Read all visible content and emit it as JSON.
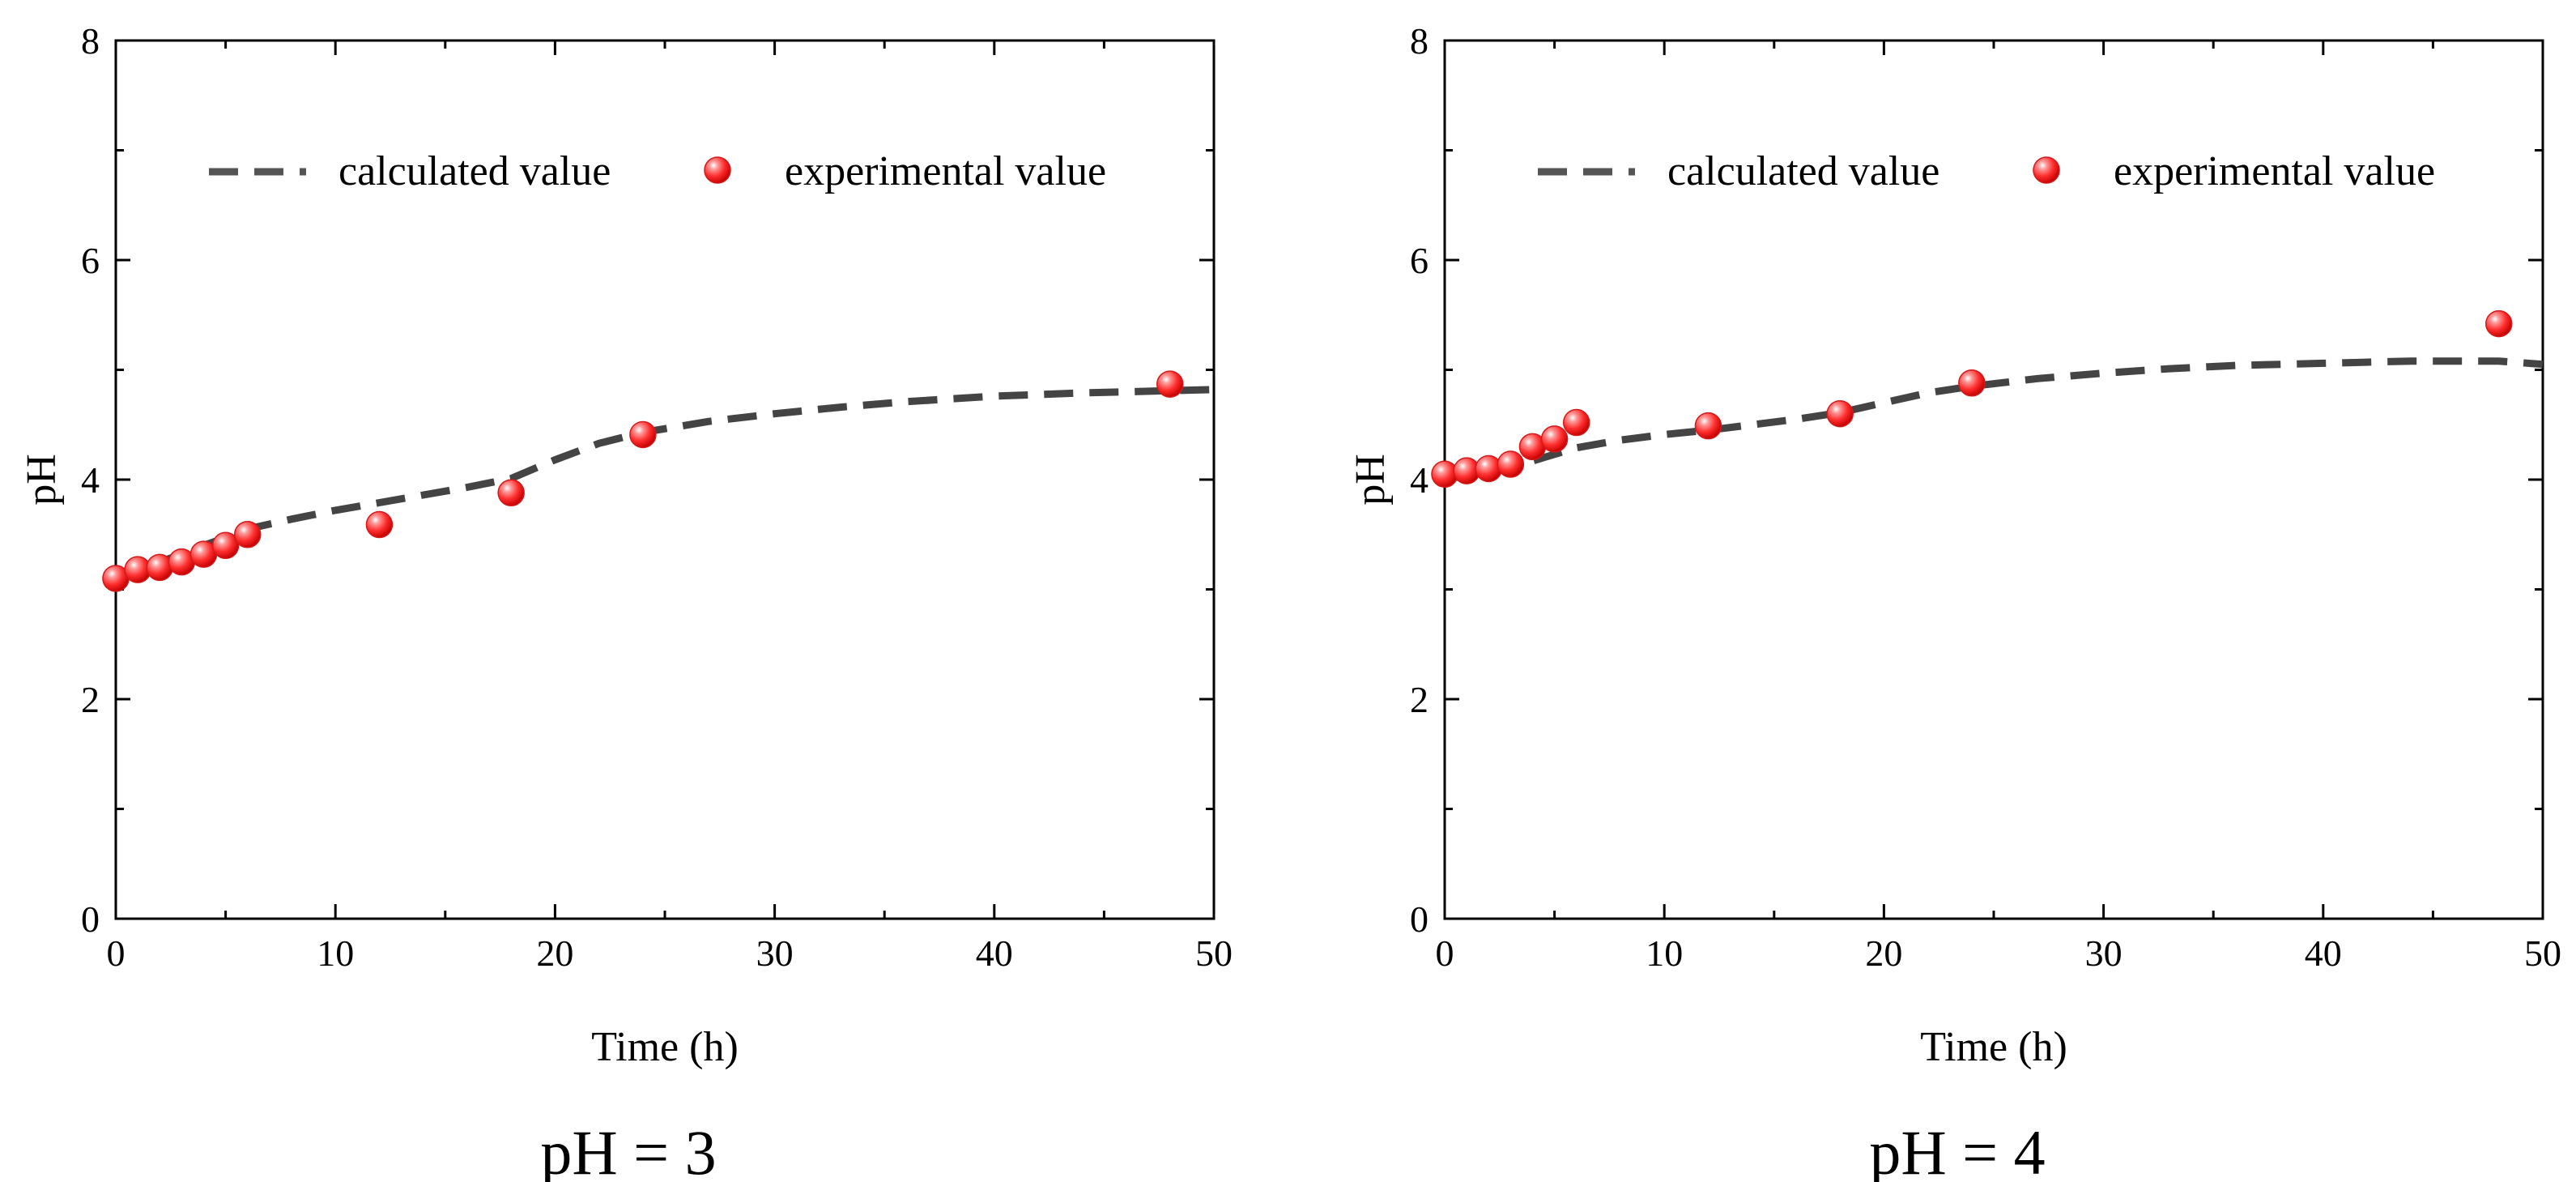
{
  "chart_data": [
    {
      "type": "line",
      "panel_label": "pH = 3",
      "title": "",
      "xlabel": "Time (h)",
      "ylabel": "pH",
      "xlim": [
        0,
        50
      ],
      "ylim": [
        0,
        8
      ],
      "xticks": [
        0,
        10,
        20,
        30,
        40,
        50
      ],
      "yticks": [
        0,
        2,
        4,
        6,
        8
      ],
      "xtick_labels": [
        "0",
        "10",
        "20",
        "30",
        "40",
        "50"
      ],
      "ytick_labels": [
        "0",
        "2",
        "4",
        "6",
        "8"
      ],
      "grid": false,
      "legend": [
        "calculated value",
        "experimental value"
      ],
      "legend_position": "top",
      "series": [
        {
          "name": "calculated value",
          "style": "dashed-line",
          "color": "#444444",
          "x": [
            0,
            1,
            2,
            3,
            4,
            5,
            6,
            8,
            10,
            12,
            14,
            16,
            18,
            20,
            22,
            24,
            27,
            30,
            33,
            36,
            40,
            44,
            48,
            50
          ],
          "y": [
            3.1,
            3.18,
            3.25,
            3.32,
            3.4,
            3.47,
            3.55,
            3.64,
            3.72,
            3.79,
            3.86,
            3.93,
            4.01,
            4.18,
            4.33,
            4.43,
            4.53,
            4.6,
            4.66,
            4.71,
            4.76,
            4.79,
            4.81,
            4.82
          ]
        },
        {
          "name": "experimental value",
          "style": "markers",
          "color": "#ff3333",
          "x": [
            0,
            1,
            2,
            3,
            4,
            5,
            6,
            12,
            18,
            24,
            48
          ],
          "y": [
            3.1,
            3.18,
            3.2,
            3.25,
            3.32,
            3.4,
            3.5,
            3.59,
            3.88,
            4.41,
            4.87
          ]
        }
      ]
    },
    {
      "type": "line",
      "panel_label": "pH = 4",
      "title": "",
      "xlabel": "Time (h)",
      "ylabel": "pH",
      "xlim": [
        0,
        50
      ],
      "ylim": [
        0,
        8
      ],
      "xticks": [
        0,
        10,
        20,
        30,
        40,
        50
      ],
      "yticks": [
        0,
        2,
        4,
        6,
        8
      ],
      "xtick_labels": [
        "0",
        "10",
        "20",
        "30",
        "40",
        "50"
      ],
      "ytick_labels": [
        "0",
        "2",
        "4",
        "6",
        "8"
      ],
      "grid": false,
      "legend": [
        "calculated value",
        "experimental value"
      ],
      "legend_position": "top",
      "series": [
        {
          "name": "calculated value",
          "style": "dashed-line",
          "color": "#444444",
          "x": [
            0,
            1,
            2,
            3,
            4,
            5,
            6,
            8,
            10,
            12,
            14,
            16,
            18,
            20,
            22,
            24,
            27,
            30,
            33,
            36,
            40,
            44,
            48,
            50
          ],
          "y": [
            4.02,
            4.05,
            4.08,
            4.12,
            4.17,
            4.23,
            4.29,
            4.36,
            4.41,
            4.45,
            4.5,
            4.55,
            4.61,
            4.7,
            4.79,
            4.85,
            4.92,
            4.97,
            5.01,
            5.04,
            5.06,
            5.08,
            5.08,
            5.05
          ]
        },
        {
          "name": "experimental value",
          "style": "markers",
          "color": "#ff3333",
          "x": [
            0,
            1,
            2,
            3,
            4,
            5,
            6,
            12,
            18,
            24,
            48
          ],
          "y": [
            4.05,
            4.08,
            4.1,
            4.14,
            4.3,
            4.37,
            4.52,
            4.49,
            4.6,
            4.88,
            5.42
          ]
        }
      ]
    }
  ]
}
